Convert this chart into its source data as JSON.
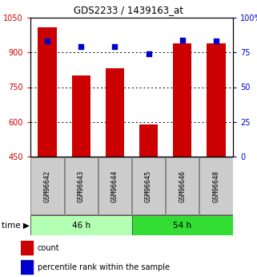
{
  "title": "GDS2233 / 1439163_at",
  "samples": [
    "GSM96642",
    "GSM96643",
    "GSM96644",
    "GSM96645",
    "GSM96646",
    "GSM96648"
  ],
  "counts": [
    1010,
    800,
    830,
    590,
    940,
    940
  ],
  "percentiles": [
    83,
    79,
    79,
    74,
    84,
    83
  ],
  "ylim_left": [
    450,
    1050
  ],
  "ylim_right": [
    0,
    100
  ],
  "yticks_left": [
    450,
    600,
    750,
    900,
    1050
  ],
  "yticks_right": [
    0,
    25,
    50,
    75,
    100
  ],
  "bar_color": "#cc0000",
  "dot_color": "#0000cc",
  "group1_label": "46 h",
  "group2_label": "54 h",
  "group1_color": "#b3ffb3",
  "group2_color": "#33dd33",
  "time_label": "time",
  "legend_count_label": "count",
  "legend_pct_label": "percentile rank within the sample",
  "background_color": "#ffffff",
  "label_box_color": "#cccccc",
  "base_value": 450
}
